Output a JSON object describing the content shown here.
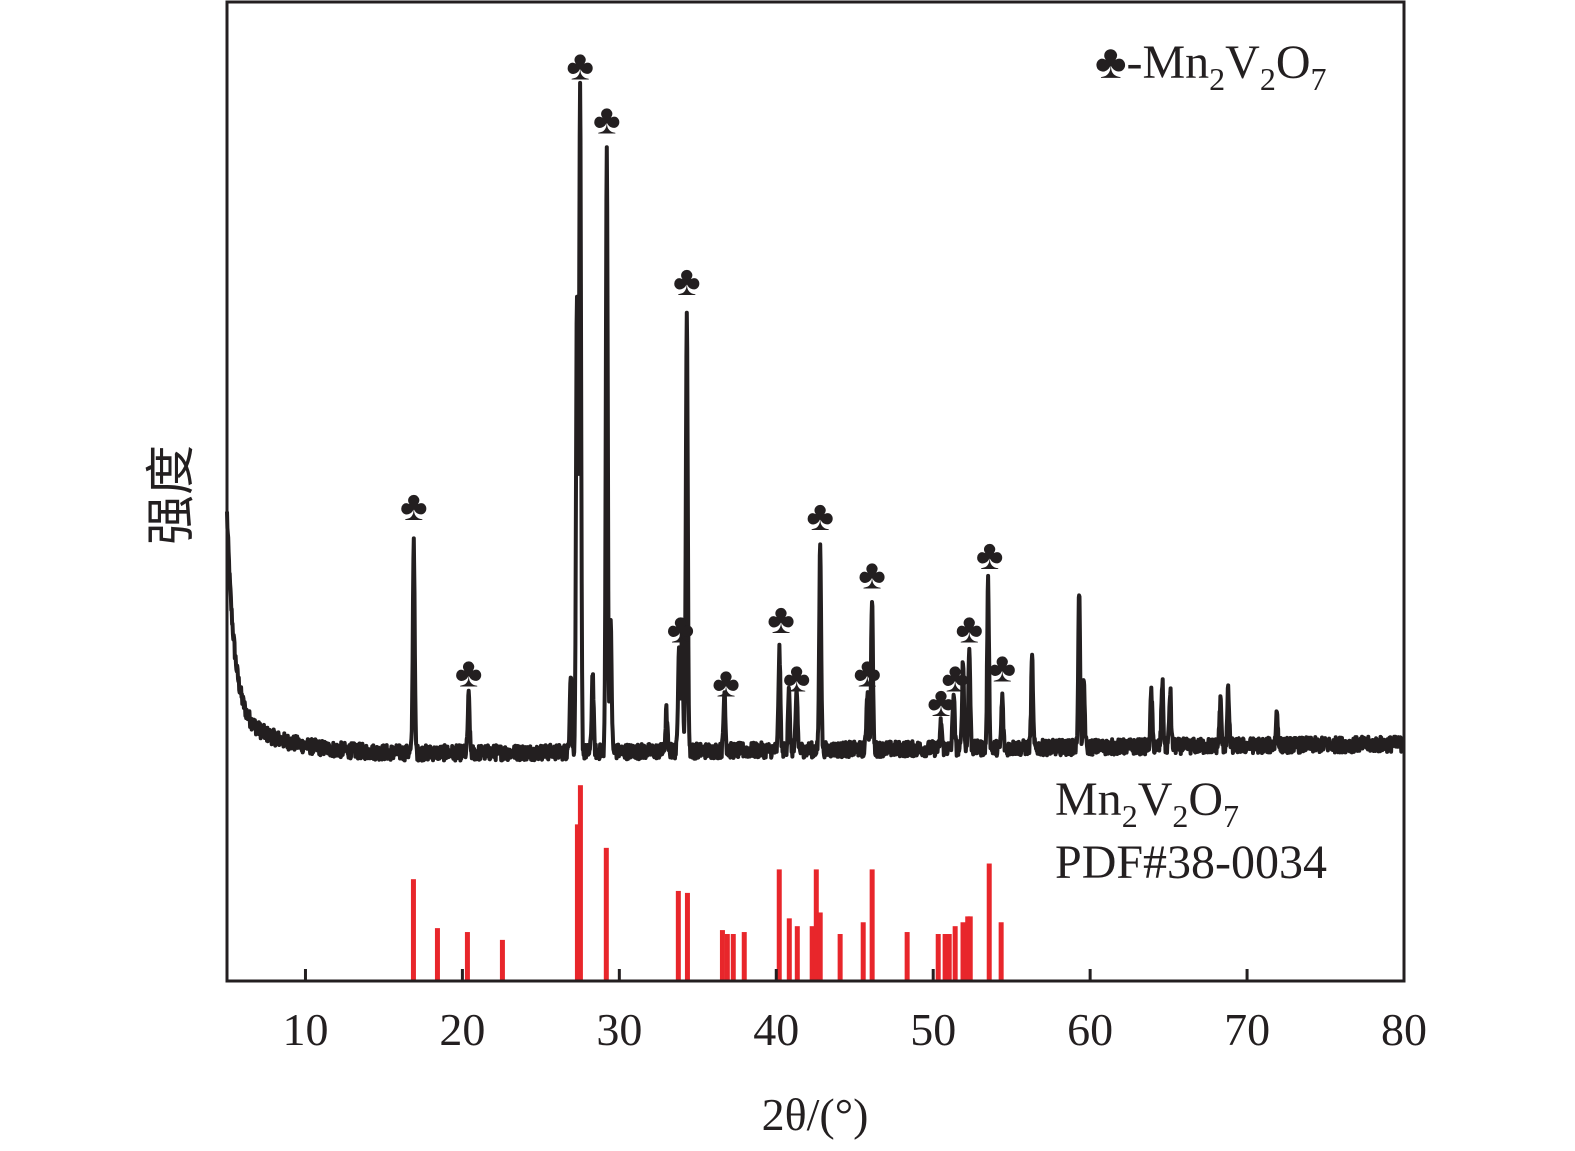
{
  "chart_data": {
    "type": "line",
    "title": "",
    "xlabel": "2θ/(°)",
    "ylabel": "强度",
    "xlim": [
      5,
      80
    ],
    "ylim": [
      0,
      1000
    ],
    "xticks": [
      10,
      20,
      30,
      40,
      50,
      60,
      70,
      80
    ],
    "grid": false,
    "legend": {
      "placement": "top-right",
      "marker": "♣",
      "text": "-Mn",
      "sub1": "2",
      "text2": "V",
      "sub2": "2",
      "text3": "O",
      "sub3": "7"
    },
    "reference_label": {
      "line1": "Mn",
      "sub1": "2",
      "line1b": "V",
      "sub2": "2",
      "line1c": "O",
      "sub3": "7",
      "line2": "PDF#38-0034"
    },
    "series": [
      {
        "name": "Mn2V2O7 sample",
        "color": "#231f20",
        "peaks": [
          [
            16.9,
            453
          ],
          [
            20.4,
            290
          ],
          [
            26.9,
            316
          ],
          [
            27.3,
            704
          ],
          [
            27.5,
            908
          ],
          [
            28.3,
            316
          ],
          [
            29.2,
            849
          ],
          [
            29.45,
            362
          ],
          [
            33.0,
            275
          ],
          [
            33.8,
            347
          ],
          [
            34.0,
            362
          ],
          [
            34.3,
            682
          ],
          [
            36.7,
            296
          ],
          [
            40.2,
            337
          ],
          [
            40.8,
            296
          ],
          [
            41.3,
            296
          ],
          [
            42.8,
            447
          ],
          [
            45.8,
            296
          ],
          [
            46.1,
            388
          ],
          [
            50.5,
            265
          ],
          [
            51.3,
            296
          ],
          [
            51.9,
            327
          ],
          [
            52.3,
            339
          ],
          [
            53.5,
            406
          ],
          [
            54.4,
            290
          ],
          [
            56.3,
            329
          ],
          [
            59.3,
            400
          ],
          [
            59.6,
            306
          ],
          [
            63.9,
            296
          ],
          [
            64.6,
            306
          ],
          [
            65.1,
            296
          ],
          [
            68.3,
            286
          ],
          [
            68.8,
            296
          ],
          [
            71.9,
            275
          ]
        ]
      },
      {
        "name": "PDF#38-0034",
        "color": "#e8262b",
        "type": "stick",
        "sticks": [
          [
            16.88,
            52
          ],
          [
            18.41,
            27
          ],
          [
            20.32,
            25
          ],
          [
            22.55,
            21
          ],
          [
            27.33,
            80
          ],
          [
            27.52,
            100
          ],
          [
            29.17,
            68
          ],
          [
            33.76,
            46
          ],
          [
            34.34,
            45
          ],
          [
            36.57,
            26
          ],
          [
            36.88,
            24
          ],
          [
            37.26,
            24
          ],
          [
            37.96,
            25
          ],
          [
            40.19,
            57
          ],
          [
            40.83,
            32
          ],
          [
            41.34,
            28
          ],
          [
            42.29,
            28
          ],
          [
            42.55,
            57
          ],
          [
            42.8,
            35
          ],
          [
            44.07,
            24
          ],
          [
            45.54,
            30
          ],
          [
            46.11,
            57
          ],
          [
            48.34,
            25
          ],
          [
            50.32,
            24
          ],
          [
            50.76,
            24
          ],
          [
            51.02,
            24
          ],
          [
            51.4,
            28
          ],
          [
            51.9,
            30
          ],
          [
            52.2,
            33
          ],
          [
            52.36,
            33
          ],
          [
            53.57,
            60
          ],
          [
            54.33,
            30
          ]
        ]
      }
    ],
    "phase_markers": {
      "symbol": "♣",
      "positions": [
        [
          16.9,
          485
        ],
        [
          20.4,
          315
        ],
        [
          27.5,
          935
        ],
        [
          29.2,
          880
        ],
        [
          34.3,
          715
        ],
        [
          33.9,
          360
        ],
        [
          36.8,
          305
        ],
        [
          40.3,
          370
        ],
        [
          41.3,
          310
        ],
        [
          42.8,
          475
        ],
        [
          46.1,
          415
        ],
        [
          45.8,
          315
        ],
        [
          50.5,
          285
        ],
        [
          51.4,
          310
        ],
        [
          52.3,
          360
        ],
        [
          53.6,
          435
        ],
        [
          54.4,
          320
        ]
      ]
    }
  }
}
